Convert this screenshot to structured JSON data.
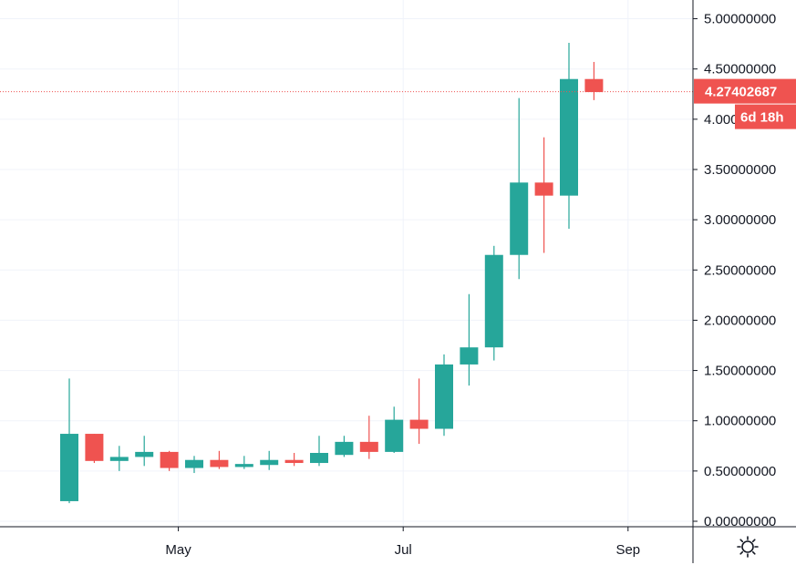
{
  "chart_data": {
    "type": "candlestick",
    "y_ticks": [
      "5.00000000",
      "4.50000000",
      "4.00000000",
      "3.50000000",
      "3.00000000",
      "2.50000000",
      "2.00000000",
      "1.50000000",
      "1.00000000",
      "0.50000000",
      "0.00000000"
    ],
    "x_ticks": [
      {
        "label": "May",
        "index": 4
      },
      {
        "label": "Jul",
        "index": 13
      },
      {
        "label": "Sep",
        "index": 22
      }
    ],
    "ylim": [
      0,
      5.15
    ],
    "grid": true,
    "candles": [
      {
        "open": 0.2,
        "high": 1.42,
        "low": 0.18,
        "close": 0.87
      },
      {
        "open": 0.87,
        "high": 0.87,
        "low": 0.58,
        "close": 0.6
      },
      {
        "open": 0.6,
        "high": 0.75,
        "low": 0.5,
        "close": 0.64
      },
      {
        "open": 0.64,
        "high": 0.85,
        "low": 0.55,
        "close": 0.69
      },
      {
        "open": 0.69,
        "high": 0.7,
        "low": 0.5,
        "close": 0.53
      },
      {
        "open": 0.53,
        "high": 0.65,
        "low": 0.48,
        "close": 0.61
      },
      {
        "open": 0.61,
        "high": 0.7,
        "low": 0.52,
        "close": 0.54
      },
      {
        "open": 0.54,
        "high": 0.65,
        "low": 0.52,
        "close": 0.57
      },
      {
        "open": 0.56,
        "high": 0.7,
        "low": 0.51,
        "close": 0.61
      },
      {
        "open": 0.61,
        "high": 0.68,
        "low": 0.55,
        "close": 0.58
      },
      {
        "open": 0.58,
        "high": 0.85,
        "low": 0.55,
        "close": 0.68
      },
      {
        "open": 0.66,
        "high": 0.85,
        "low": 0.64,
        "close": 0.79
      },
      {
        "open": 0.79,
        "high": 1.05,
        "low": 0.62,
        "close": 0.69
      },
      {
        "open": 0.69,
        "high": 1.14,
        "low": 0.68,
        "close": 1.01
      },
      {
        "open": 1.01,
        "high": 1.42,
        "low": 0.77,
        "close": 0.92
      },
      {
        "open": 0.92,
        "high": 1.66,
        "low": 0.85,
        "close": 1.56
      },
      {
        "open": 1.56,
        "high": 2.26,
        "low": 1.35,
        "close": 1.73
      },
      {
        "open": 1.73,
        "high": 2.74,
        "low": 1.6,
        "close": 2.65
      },
      {
        "open": 2.65,
        "high": 4.21,
        "low": 2.41,
        "close": 3.37
      },
      {
        "open": 3.37,
        "high": 3.82,
        "low": 2.67,
        "close": 3.24
      },
      {
        "open": 3.24,
        "high": 4.76,
        "low": 2.91,
        "close": 4.4
      },
      {
        "open": 4.4,
        "high": 4.57,
        "low": 4.19,
        "close": 4.27
      }
    ],
    "last_price": {
      "value": 4.27402687,
      "label": "4.27402687",
      "countdown": "6d 18h"
    },
    "colors": {
      "up": "#26a69a",
      "down": "#ef5350",
      "grid": "#f0f3fa",
      "axis": "#131722",
      "price_line": "#ef5350",
      "badge": "#ef5350"
    }
  },
  "settings": {
    "icon": "gear-icon"
  }
}
